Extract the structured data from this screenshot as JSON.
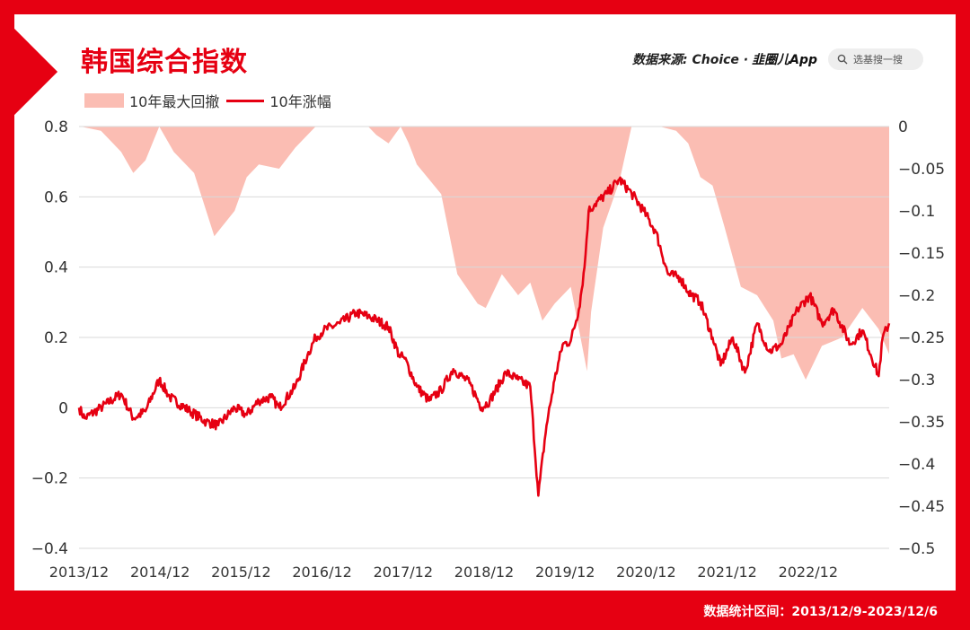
{
  "title": "韩国综合指数",
  "source": {
    "prefix": "数据来源: Choice ·",
    "app": "韭圈儿App"
  },
  "search": {
    "placeholder": "选基搜一搜",
    "icon": "search-icon"
  },
  "footer": "数据统计区间：2013/12/9-2023/12/6",
  "colors": {
    "brand": "#e60012",
    "drawdown": "#fbbdb3",
    "grid": "#d9d9d9"
  },
  "chart_data": {
    "type": "line",
    "legend_placement": "top-left",
    "grid": true,
    "x_ticks": [
      "2013/12",
      "2014/12",
      "2015/12",
      "2016/12",
      "2017/12",
      "2018/12",
      "2019/12",
      "2020/12",
      "2021/12",
      "2022/12"
    ],
    "left_axis": {
      "ylim": [
        -0.4,
        0.8
      ],
      "ticks": [
        "0.8",
        "0.6",
        "0.4",
        "0.2",
        "0",
        "−0.2",
        "−0.4"
      ]
    },
    "right_axis": {
      "ylim": [
        -0.5,
        0
      ],
      "ticks": [
        "0",
        "−0.05",
        "−0.1",
        "−0.15",
        "−0.2",
        "−0.25",
        "−0.3",
        "−0.35",
        "−0.4",
        "−0.45",
        "−0.5"
      ]
    },
    "series": [
      {
        "name": "10年最大回撤",
        "type": "area",
        "axis": "right",
        "x": [
          2013.95,
          2014.2,
          2014.45,
          2014.6,
          2014.75,
          2014.92,
          2015.1,
          2015.35,
          2015.6,
          2015.85,
          2016.0,
          2016.15,
          2016.4,
          2016.6,
          2016.85,
          2016.95,
          2017.2,
          2017.5,
          2017.6,
          2017.75,
          2017.9,
          2018.0,
          2018.1,
          2018.4,
          2018.6,
          2018.85,
          2018.95,
          2019.15,
          2019.35,
          2019.5,
          2019.65,
          2019.8,
          2019.9,
          2020.0,
          2020.2,
          2020.25,
          2020.4,
          2020.6,
          2020.75,
          2020.95,
          2021.1,
          2021.3,
          2021.45,
          2021.6,
          2021.75,
          2021.9,
          2022.1,
          2022.3,
          2022.5,
          2022.6,
          2022.75,
          2022.9,
          2023.1,
          2023.35,
          2023.6,
          2023.8,
          2023.93
        ],
        "y": [
          0,
          -0.005,
          -0.03,
          -0.055,
          -0.04,
          0,
          -0.03,
          -0.055,
          -0.13,
          -0.1,
          -0.06,
          -0.045,
          -0.05,
          -0.025,
          0,
          0,
          0,
          0,
          -0.01,
          -0.02,
          0,
          -0.02,
          -0.045,
          -0.08,
          -0.175,
          -0.21,
          -0.215,
          -0.175,
          -0.2,
          -0.185,
          -0.23,
          -0.21,
          -0.2,
          -0.19,
          -0.29,
          -0.22,
          -0.12,
          -0.065,
          0,
          0,
          0,
          -0.005,
          -0.02,
          -0.06,
          -0.07,
          -0.12,
          -0.19,
          -0.2,
          -0.23,
          -0.275,
          -0.27,
          -0.3,
          -0.26,
          -0.25,
          -0.215,
          -0.24,
          -0.27
        ]
      },
      {
        "name": "10年涨幅",
        "type": "line",
        "axis": "left",
        "x": [
          2013.93,
          2014.0,
          2014.2,
          2014.45,
          2014.6,
          2014.75,
          2014.92,
          2015.05,
          2015.3,
          2015.5,
          2015.65,
          2015.85,
          2016.0,
          2016.15,
          2016.3,
          2016.4,
          2016.6,
          2016.75,
          2016.85,
          2016.95,
          2017.15,
          2017.35,
          2017.5,
          2017.6,
          2017.75,
          2017.88,
          2017.95,
          2018.1,
          2018.25,
          2018.4,
          2018.55,
          2018.75,
          2018.9,
          2019.0,
          2019.2,
          2019.35,
          2019.5,
          2019.6,
          2019.7,
          2019.8,
          2019.9,
          2020.0,
          2020.1,
          2020.17,
          2020.22,
          2020.3,
          2020.45,
          2020.6,
          2020.75,
          2020.9,
          2021.05,
          2021.2,
          2021.35,
          2021.45,
          2021.6,
          2021.75,
          2021.85,
          2022.0,
          2022.15,
          2022.3,
          2022.45,
          2022.6,
          2022.7,
          2022.8,
          2022.95,
          2023.1,
          2023.25,
          2023.45,
          2023.6,
          2023.8,
          2023.85,
          2023.93
        ],
        "y": [
          0,
          -0.03,
          0.0,
          0.04,
          -0.03,
          -0.01,
          0.08,
          0.03,
          -0.01,
          -0.04,
          -0.05,
          0.0,
          -0.02,
          0.02,
          0.03,
          0.0,
          0.06,
          0.15,
          0.2,
          0.22,
          0.24,
          0.27,
          0.26,
          0.25,
          0.23,
          0.15,
          0.14,
          0.06,
          0.02,
          0.05,
          0.11,
          0.07,
          0.0,
          0.02,
          0.1,
          0.08,
          0.06,
          -0.25,
          -0.05,
          0.08,
          0.18,
          0.19,
          0.28,
          0.4,
          0.56,
          0.58,
          0.61,
          0.65,
          0.61,
          0.56,
          0.5,
          0.38,
          0.37,
          0.33,
          0.3,
          0.2,
          0.12,
          0.2,
          0.1,
          0.24,
          0.16,
          0.18,
          0.23,
          0.28,
          0.32,
          0.24,
          0.28,
          0.18,
          0.22,
          0.09,
          0.2,
          0.24
        ]
      }
    ]
  }
}
